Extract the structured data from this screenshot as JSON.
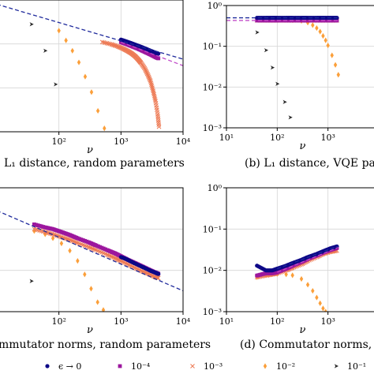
{
  "chart_data": [
    {
      "type": "scatter",
      "caption": "L1 distance, random parameters",
      "caption_visible": "L₁ distance, random parameters",
      "xlabel": "ν",
      "x_scale": "log",
      "y_scale": "log",
      "x_ticks": [
        "10²",
        "10³",
        "10⁴"
      ],
      "y_ticks": [],
      "xlim": [
        10,
        10000
      ],
      "ylim": [
        0.001,
        1
      ],
      "grid": true,
      "series": [
        {
          "key": "e0",
          "x": [
            1000,
            1200,
            1500,
            1900,
            2400,
            3000,
            3600,
            4000
          ],
          "y": [
            0.125,
            0.115,
            0.103,
            0.091,
            0.08,
            0.07,
            0.063,
            0.06
          ]
        },
        {
          "key": "e4",
          "x": [
            1000,
            1200,
            1500,
            1900,
            2400,
            3000,
            3600,
            4000
          ],
          "y": [
            0.11,
            0.1,
            0.088,
            0.077,
            0.066,
            0.057,
            0.05,
            0.047
          ]
        },
        {
          "key": "e3",
          "x": [
            500,
            700,
            900,
            1100,
            1300,
            1500,
            1700,
            1900,
            2100,
            2400,
            2700,
            3000,
            3300,
            3600,
            3900,
            4100
          ],
          "y": [
            0.11,
            0.098,
            0.087,
            0.077,
            0.068,
            0.06,
            0.052,
            0.044,
            0.037,
            0.028,
            0.02,
            0.014,
            0.0085,
            0.005,
            0.0025,
            0.0013
          ]
        },
        {
          "key": "e2",
          "x": [
            100,
            130,
            165,
            210,
            265,
            335,
            425,
            540
          ],
          "y": [
            0.2,
            0.12,
            0.07,
            0.038,
            0.018,
            0.008,
            0.003,
            0.0012
          ]
        },
        {
          "key": "e1",
          "x": [
            36,
            60,
            88
          ],
          "y": [
            0.28,
            0.07,
            0.012
          ]
        }
      ],
      "fits": [
        {
          "key": "e0",
          "x": [
            10,
            10000
          ],
          "y": [
            0.8,
            0.045
          ]
        },
        {
          "key": "e4",
          "x": [
            1000,
            10000
          ],
          "y": [
            0.11,
            0.032
          ]
        }
      ]
    },
    {
      "type": "scatter",
      "caption": "(b) L1 distance, VQE pa",
      "caption_visible": "(b) L₁ distance, VQE pa",
      "xlabel": "ν",
      "x_scale": "log",
      "y_scale": "log",
      "x_ticks": [
        "10¹",
        "10²",
        "10³"
      ],
      "y_ticks": [
        "10⁰",
        "10⁻¹",
        "10⁻²",
        "10⁻³"
      ],
      "xlim": [
        10,
        10000
      ],
      "ylim": [
        0.001,
        1
      ],
      "grid": true,
      "series": [
        {
          "key": "e0",
          "x": [
            40,
            60,
            80,
            100,
            150,
            200,
            300,
            400,
            600,
            800,
            1100,
            1500
          ],
          "y": [
            0.5,
            0.5,
            0.5,
            0.5,
            0.5,
            0.5,
            0.5,
            0.5,
            0.5,
            0.5,
            0.5,
            0.5
          ]
        },
        {
          "key": "e4",
          "x": [
            40,
            60,
            80,
            100,
            150,
            200,
            300,
            400,
            600,
            800,
            1100,
            1500
          ],
          "y": [
            0.43,
            0.43,
            0.43,
            0.43,
            0.43,
            0.43,
            0.43,
            0.43,
            0.43,
            0.43,
            0.43,
            0.43
          ]
        },
        {
          "key": "e3",
          "x": [
            40,
            60,
            80,
            100,
            150,
            200,
            300,
            400,
            600,
            800,
            1100,
            1500
          ],
          "y": [
            0.43,
            0.43,
            0.43,
            0.43,
            0.43,
            0.43,
            0.43,
            0.43,
            0.43,
            0.43,
            0.43,
            0.43
          ]
        },
        {
          "key": "e2",
          "x": [
            40,
            60,
            80,
            100,
            150,
            200,
            300,
            400,
            500,
            600,
            700,
            800,
            900,
            1000,
            1200,
            1400,
            1600
          ],
          "y": [
            0.47,
            0.47,
            0.47,
            0.46,
            0.45,
            0.44,
            0.42,
            0.38,
            0.33,
            0.28,
            0.23,
            0.18,
            0.14,
            0.105,
            0.06,
            0.035,
            0.02
          ]
        },
        {
          "key": "e1",
          "x": [
            40,
            60,
            80,
            100,
            140,
            180
          ],
          "y": [
            0.22,
            0.08,
            0.03,
            0.012,
            0.0043,
            0.0018
          ]
        }
      ],
      "fits": [
        {
          "key": "e0",
          "x": [
            10,
            1600
          ],
          "y": [
            0.5,
            0.5
          ]
        },
        {
          "key": "e4",
          "x": [
            10,
            1600
          ],
          "y": [
            0.43,
            0.43
          ]
        }
      ]
    },
    {
      "type": "scatter",
      "caption": "mmutator norms, random parameters",
      "xlabel": "ν",
      "x_scale": "log",
      "y_scale": "log",
      "x_ticks": [
        "10²",
        "10³",
        "10⁴"
      ],
      "y_ticks": [],
      "xlim": [
        10,
        10000
      ],
      "ylim": [
        0.001,
        1
      ],
      "grid": true,
      "series": [
        {
          "key": "e0",
          "x": [
            1000,
            1200,
            1500,
            1900,
            2400,
            3000,
            3600,
            4000
          ],
          "y": [
            0.021,
            0.019,
            0.016,
            0.0135,
            0.0115,
            0.0098,
            0.0088,
            0.0082
          ]
        },
        {
          "key": "e4",
          "x": [
            40,
            60,
            80,
            110,
            150,
            200,
            300,
            400,
            600,
            800,
            1000,
            1300,
            1700,
            2200,
            2800,
            3500,
            4000
          ],
          "y": [
            0.13,
            0.11,
            0.1,
            0.085,
            0.072,
            0.06,
            0.048,
            0.04,
            0.031,
            0.026,
            0.022,
            0.018,
            0.015,
            0.0125,
            0.0105,
            0.009,
            0.0083
          ]
        },
        {
          "key": "e3",
          "x": [
            40,
            60,
            80,
            110,
            150,
            200,
            300,
            400,
            600,
            800,
            1000,
            1300,
            1700,
            2200,
            2800,
            3500,
            4000
          ],
          "y": [
            0.1,
            0.085,
            0.075,
            0.064,
            0.055,
            0.046,
            0.037,
            0.031,
            0.024,
            0.02,
            0.017,
            0.014,
            0.0115,
            0.0095,
            0.0082,
            0.007,
            0.0065
          ]
        },
        {
          "key": "e2",
          "x": [
            40,
            60,
            80,
            110,
            150,
            200,
            260,
            330,
            420,
            520
          ],
          "y": [
            0.09,
            0.075,
            0.06,
            0.045,
            0.03,
            0.017,
            0.008,
            0.0036,
            0.0017,
            0.0011
          ]
        },
        {
          "key": "e1",
          "x": [
            36
          ],
          "y": [
            0.0055
          ]
        }
      ],
      "fits": [
        {
          "key": "e0",
          "x": [
            10,
            10000
          ],
          "y": [
            0.28,
            0.0032
          ]
        }
      ]
    },
    {
      "type": "scatter",
      "caption": "(d) Commutator norms, VQE",
      "xlabel": "ν",
      "x_scale": "log",
      "y_scale": "log",
      "x_ticks": [
        "10¹",
        "10²",
        "10³"
      ],
      "y_ticks": [
        "10⁰",
        "10⁻¹",
        "10⁻²",
        "10⁻³"
      ],
      "xlim": [
        10,
        10000
      ],
      "ylim": [
        0.001,
        1
      ],
      "grid": true,
      "series": [
        {
          "key": "e0",
          "x": [
            40,
            60,
            80,
            100,
            150,
            200,
            300,
            400,
            600,
            800,
            1100,
            1500
          ],
          "y": [
            0.013,
            0.01,
            0.01,
            0.011,
            0.013,
            0.015,
            0.018,
            0.021,
            0.025,
            0.029,
            0.034,
            0.038
          ]
        },
        {
          "key": "e4",
          "x": [
            40,
            60,
            80,
            100,
            150,
            200,
            300,
            400,
            600,
            800,
            1100,
            1500
          ],
          "y": [
            0.0075,
            0.0085,
            0.0085,
            0.009,
            0.011,
            0.013,
            0.016,
            0.019,
            0.023,
            0.027,
            0.031,
            0.035
          ]
        },
        {
          "key": "e3",
          "x": [
            40,
            60,
            80,
            100,
            150,
            200,
            300,
            400,
            600,
            800,
            1100,
            1500
          ],
          "y": [
            0.0068,
            0.0075,
            0.008,
            0.0085,
            0.01,
            0.0115,
            0.014,
            0.017,
            0.021,
            0.025,
            0.028,
            0.03
          ]
        },
        {
          "key": "e2",
          "x": [
            40,
            60,
            80,
            100,
            150,
            200,
            300,
            400,
            500,
            600,
            700,
            800,
            900
          ],
          "y": [
            0.0068,
            0.008,
            0.0082,
            0.0082,
            0.008,
            0.0076,
            0.0062,
            0.0045,
            0.0032,
            0.0022,
            0.0016,
            0.0012,
            0.001
          ]
        },
        {
          "key": "e1",
          "x": [],
          "y": []
        }
      ],
      "fits": [
        {
          "key": "e0",
          "x": [
            100,
            1600
          ],
          "y": [
            0.011,
            0.039
          ]
        },
        {
          "key": "e4",
          "x": [
            100,
            1600
          ],
          "y": [
            0.009,
            0.036
          ]
        }
      ]
    }
  ],
  "legend": {
    "placement": "bottom",
    "items": [
      {
        "key": "e0",
        "label": "ϵ → 0",
        "marker": "circle",
        "color": "#0d0887"
      },
      {
        "key": "e4",
        "label": "10⁻⁴",
        "marker": "square",
        "color": "#9c179e"
      },
      {
        "key": "e3",
        "label": "10⁻³",
        "marker": "x",
        "color": "#ed7953"
      },
      {
        "key": "e2",
        "label": "10⁻²",
        "marker": "diamond",
        "color": "#fb9f3a"
      },
      {
        "key": "e1",
        "label": "10⁻¹",
        "marker": "triangle-right",
        "color": "#2a2a2a"
      }
    ]
  },
  "colors": {
    "e0": "#0d0887",
    "e4": "#9c179e",
    "e3": "#ed7953",
    "e2": "#fb9f3a",
    "e1": "#2a2a2a",
    "fit_e0": "#1f2a9c",
    "fit_e4": "#c24dc9"
  }
}
